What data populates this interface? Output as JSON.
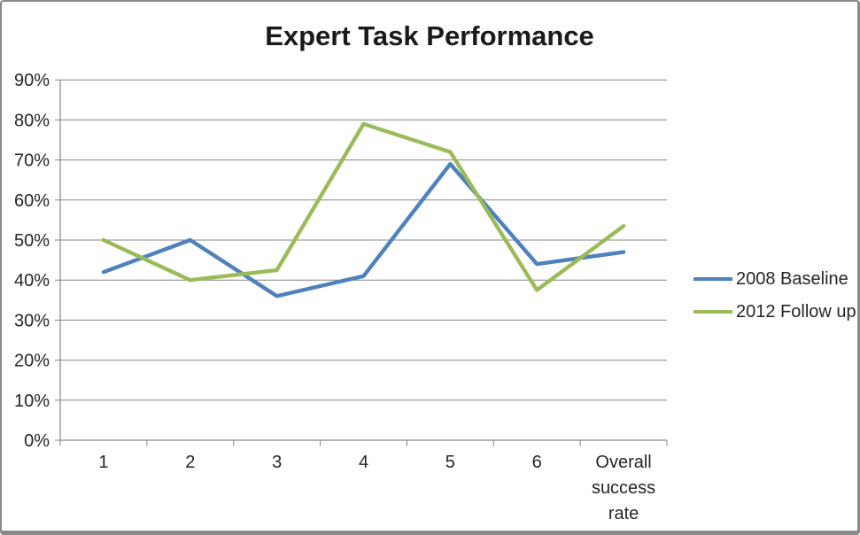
{
  "chart_data": {
    "type": "line",
    "title": "Expert Task Performance",
    "categories": [
      "1",
      "2",
      "3",
      "4",
      "5",
      "6",
      "Overall success rate"
    ],
    "series": [
      {
        "name": "2008 Baseline",
        "color": "#4F81BD",
        "values": [
          42,
          50,
          36,
          41,
          69,
          44,
          47
        ]
      },
      {
        "name": "2012 Follow up",
        "color": "#9BBB59",
        "values": [
          50,
          40,
          42.5,
          79,
          72,
          37.5,
          53.5
        ]
      }
    ],
    "y_axis": {
      "min": 0,
      "max": 90,
      "step": 10,
      "tick_labels": [
        "0%",
        "10%",
        "20%",
        "30%",
        "40%",
        "50%",
        "60%",
        "70%",
        "80%",
        "90%"
      ]
    },
    "x_axis": {
      "tick_labels": [
        "1",
        "2",
        "3",
        "4",
        "5",
        "6",
        "Overall success rate"
      ]
    },
    "legend": {
      "position": "right"
    },
    "grid": true,
    "colors": {
      "axis": "#868686",
      "grid": "#868686",
      "text": "#262626",
      "title": "#1a1a1a",
      "frame_border": "#8a8a8a",
      "background": "#ffffff"
    }
  }
}
